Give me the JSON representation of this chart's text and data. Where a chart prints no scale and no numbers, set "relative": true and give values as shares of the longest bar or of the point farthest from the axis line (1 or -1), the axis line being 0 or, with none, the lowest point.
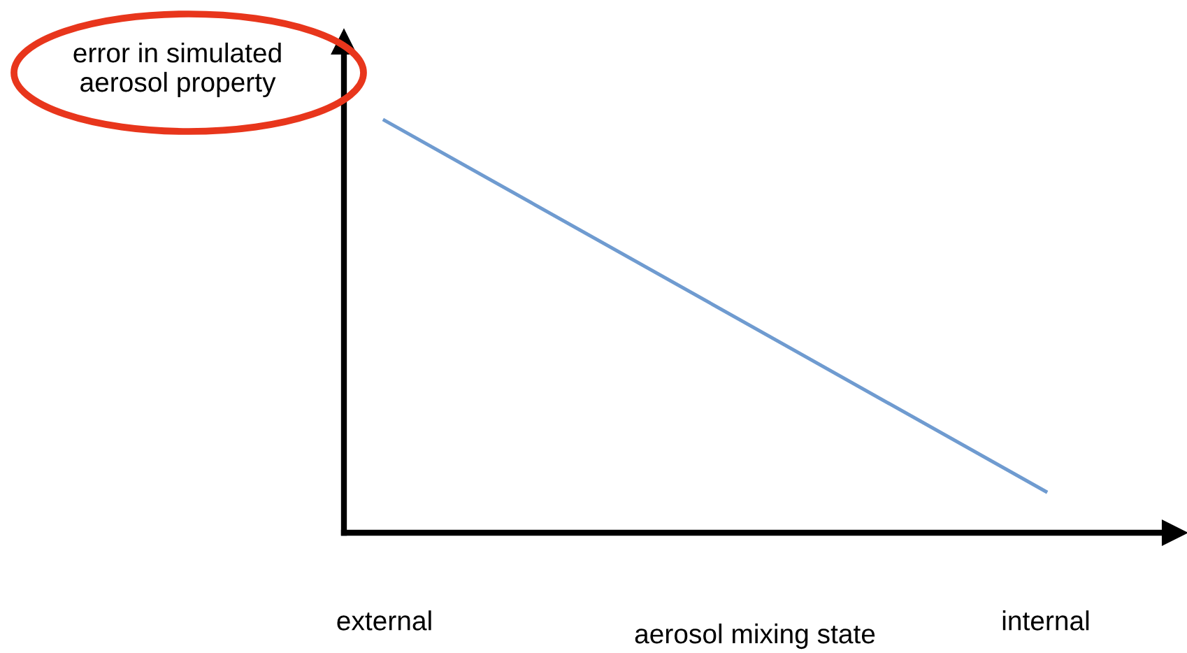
{
  "chart_data": {
    "type": "line",
    "relative": true,
    "categories": [
      "external",
      "internal"
    ],
    "xlabel": "aerosol mixing state",
    "ylabel": "error in simulated\naerosol property",
    "series": [
      {
        "color": "#6f9bd0",
        "values": [
          1,
          0.1
        ]
      }
    ],
    "grid": false,
    "legend": false,
    "marker": "none",
    "line_style": "solid"
  }
}
